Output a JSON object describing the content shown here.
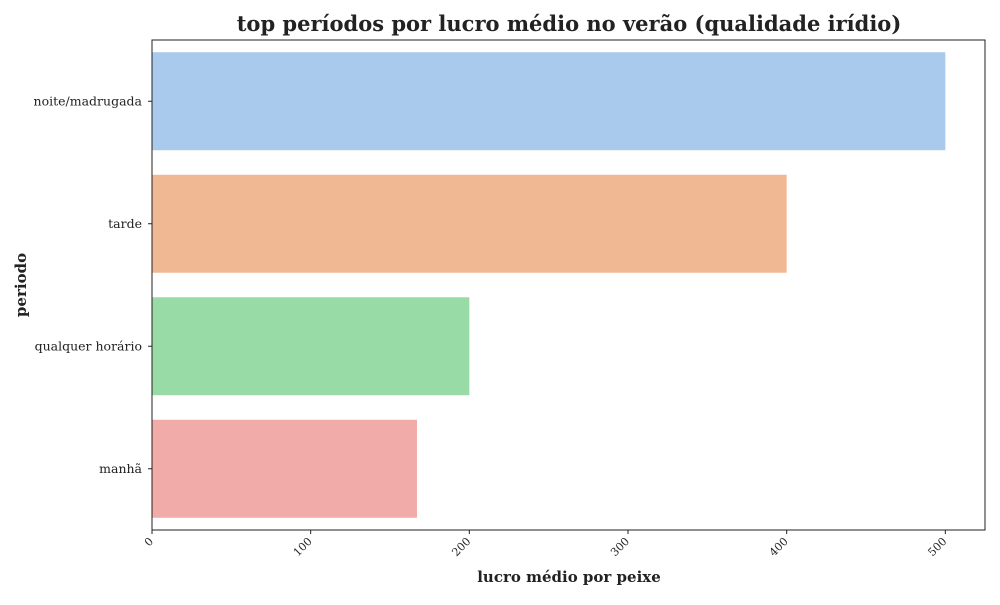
{
  "chart_data": {
    "type": "bar",
    "orientation": "horizontal",
    "title": "top períodos por lucro médio no verão (qualidade irídio)",
    "xlabel": "lucro médio por peixe",
    "ylabel": "periodo",
    "categories": [
      "noite/madrugada",
      "tarde",
      "qualquer horário",
      "manhã"
    ],
    "values": [
      500,
      400,
      200,
      167
    ],
    "colors": [
      "#a9c9ed",
      "#f0b893",
      "#99dba7",
      "#f1aba8"
    ],
    "xlim": [
      0,
      525
    ],
    "xticks": [
      0,
      100,
      200,
      300,
      400,
      500
    ],
    "grid": false
  }
}
